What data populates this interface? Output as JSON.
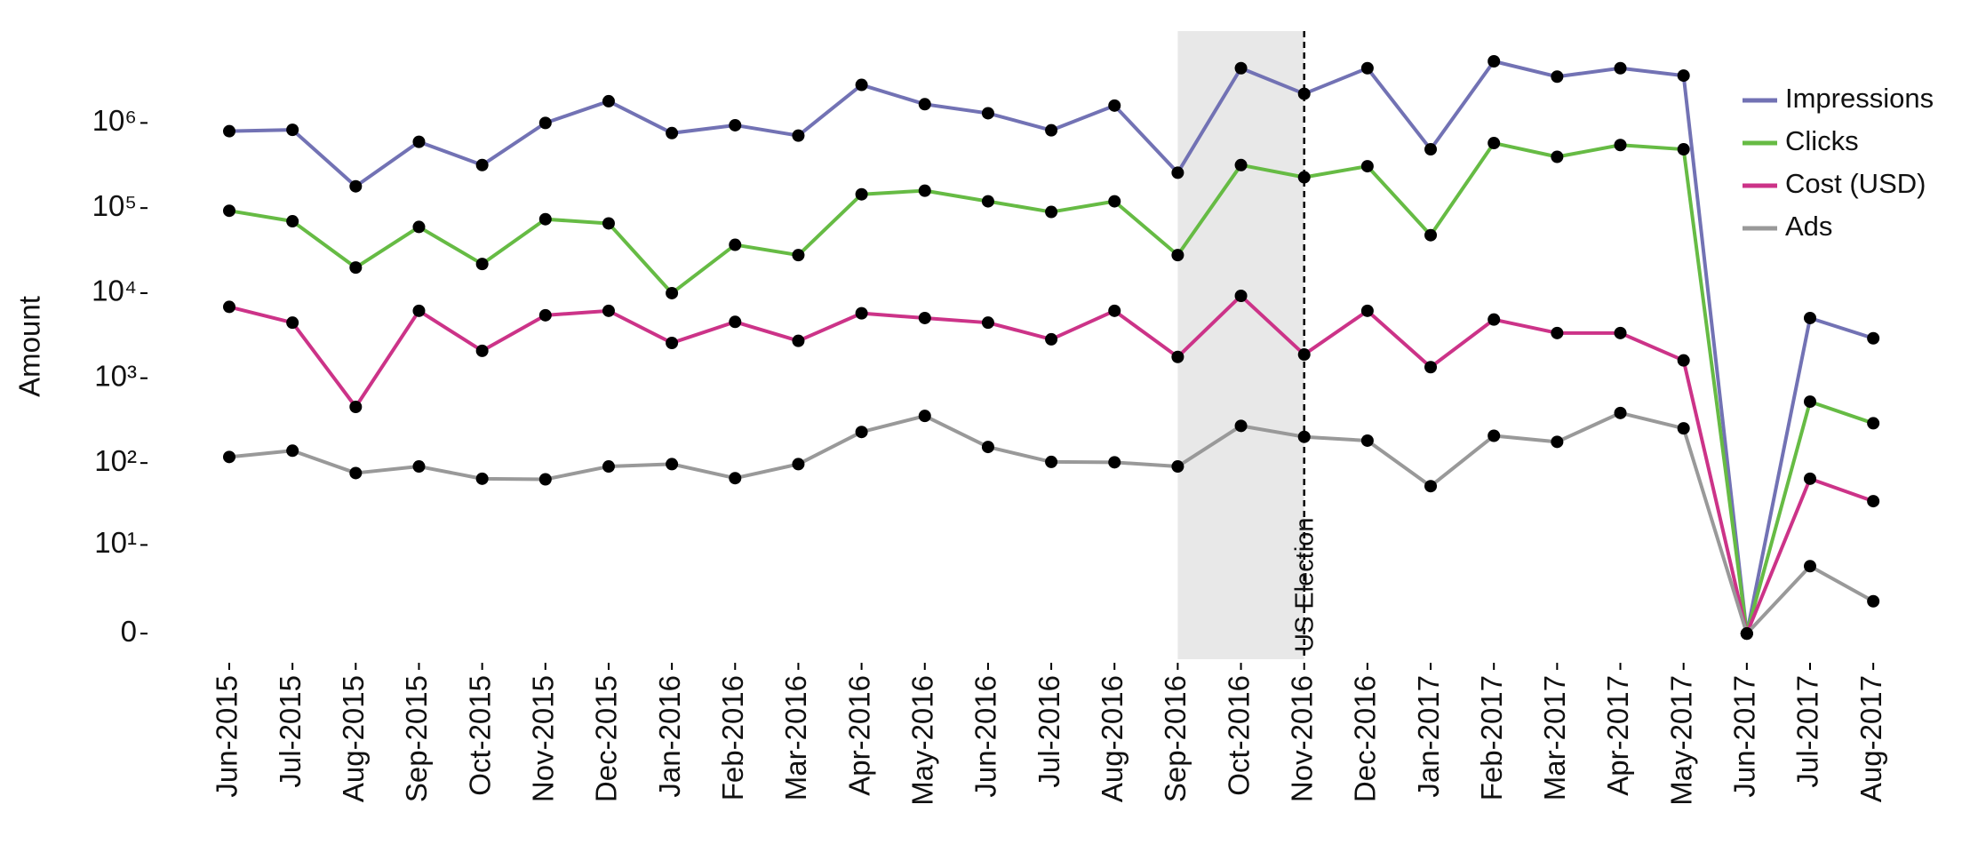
{
  "chart_data": {
    "type": "line",
    "y_label": "Amount",
    "y_scale": "symlog",
    "categories": [
      "Jun-2015",
      "Jul-2015",
      "Aug-2015",
      "Sep-2015",
      "Oct-2015",
      "Nov-2015",
      "Dec-2015",
      "Jan-2016",
      "Feb-2016",
      "Mar-2016",
      "Apr-2016",
      "May-2016",
      "Jun-2016",
      "Jul-2016",
      "Aug-2016",
      "Sep-2016",
      "Oct-2016",
      "Nov-2016",
      "Dec-2016",
      "Jan-2017",
      "Feb-2017",
      "Mar-2017",
      "Apr-2017",
      "May-2017",
      "Jun-2017",
      "Jul-2017",
      "Aug-2017"
    ],
    "series": [
      {
        "name": "Impressions",
        "color": "#7272b4",
        "values": [
          800000,
          830000,
          180000,
          600000,
          320000,
          1000000,
          1800000,
          760000,
          940000,
          710000,
          2800000,
          1660000,
          1300000,
          820000,
          1600000,
          260000,
          4400000,
          2200000,
          4400000,
          490000,
          5300000,
          3500000,
          4400000,
          3600000,
          0,
          5100,
          2950
        ]
      },
      {
        "name": "Clicks",
        "color": "#66bb44",
        "values": [
          93000,
          70000,
          20000,
          60000,
          22000,
          74000,
          66000,
          10000,
          37000,
          28000,
          145000,
          160000,
          120000,
          90000,
          120000,
          28000,
          320000,
          230000,
          310000,
          48000,
          580000,
          400000,
          550000,
          490000,
          0,
          530,
          295
        ]
      },
      {
        "name": "Cost (USD)",
        "color": "#cc3388",
        "values": [
          6900,
          4500,
          460,
          6200,
          2100,
          5500,
          6200,
          2600,
          4600,
          2750,
          5800,
          5100,
          4500,
          2870,
          6200,
          1780,
          9300,
          1900,
          6200,
          1350,
          4900,
          3400,
          3400,
          1620,
          0,
          65,
          35
        ]
      },
      {
        "name": "Ads",
        "color": "#999999",
        "values": [
          118,
          140,
          76,
          91,
          65,
          64,
          91,
          97,
          66,
          97,
          233,
          360,
          155,
          103,
          102,
          91,
          275,
          204,
          184,
          53,
          210,
          178,
          390,
          257,
          0,
          5.2,
          1.4
        ]
      }
    ],
    "ylim": [
      -1,
      12000000
    ],
    "yticks": [
      0,
      {
        "value": 10,
        "label": "10¹"
      },
      {
        "value": 100,
        "label": "10²"
      },
      {
        "value": 1000,
        "label": "10³"
      },
      {
        "value": 10000,
        "label": "10⁴"
      },
      {
        "value": 100000,
        "label": "10⁵"
      },
      {
        "value": 1000000,
        "label": "10⁶"
      }
    ],
    "grid": false,
    "legend": "upper right",
    "marker_color": "#000000",
    "annotation": {
      "text": "US Election",
      "x": "Nov-2016",
      "shaded_from": "Sep-2016",
      "shade_color": "#e8e8e8"
    }
  }
}
